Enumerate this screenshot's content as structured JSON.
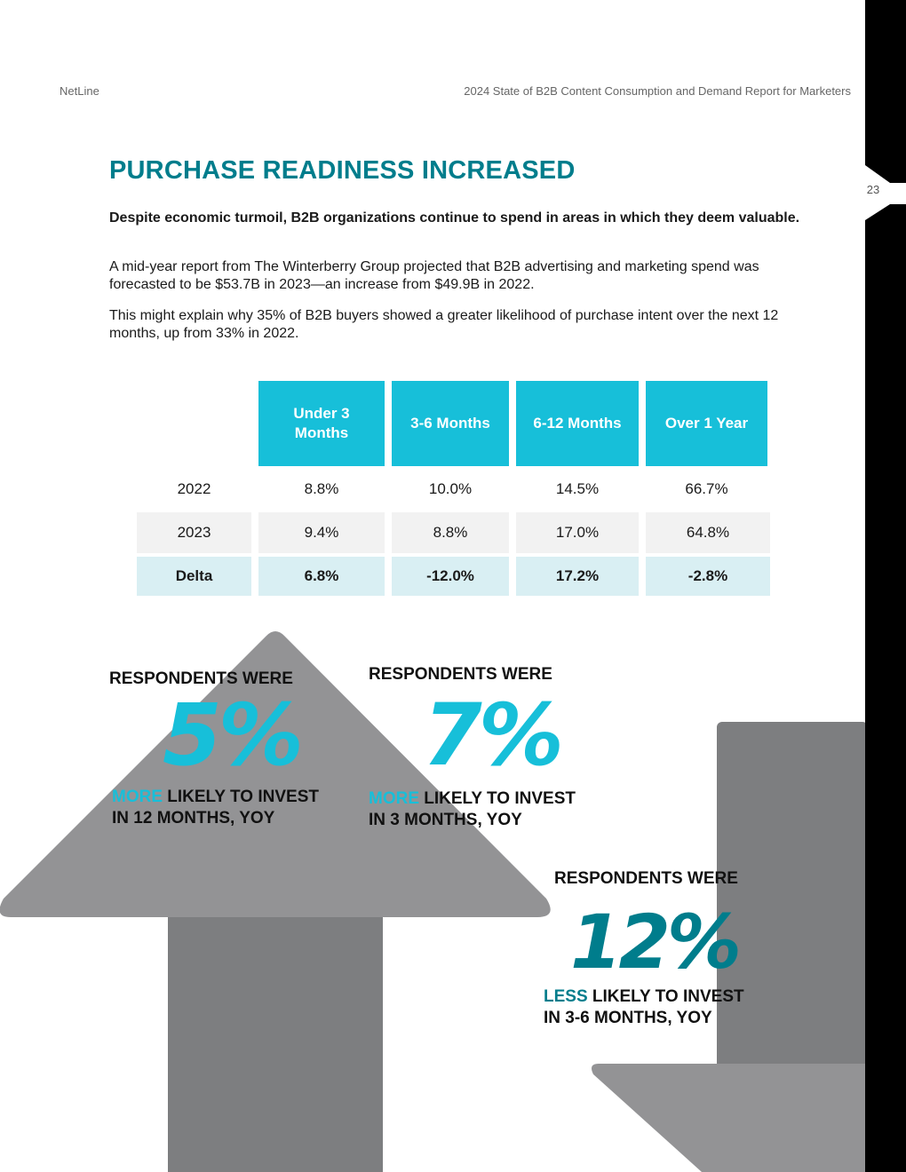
{
  "header": {
    "brand": "NetLine",
    "report_title": "2024 State of B2B Content Consumption and Demand Report for Marketers",
    "page_number": "23"
  },
  "section": {
    "title": "PURCHASE READINESS INCREASED",
    "lead": "Despite economic turmoil, B2B organizations continue to spend in areas in which they deem valuable.",
    "paragraph1": "A mid-year report from The Winterberry Group projected that B2B advertising and marketing spend was forecasted to be $53.7B in 2023—an increase from $49.9B in 2022.",
    "paragraph2": "This might explain why 35% of B2B buyers showed a greater likelihood of purchase intent over the next 12 months, up from 33% in 2022."
  },
  "table": {
    "headers": [
      "Under 3 Months",
      "3-6 Months",
      "6-12 Months",
      "Over 1 Year"
    ],
    "rows": [
      {
        "label": "2022",
        "values": [
          "8.8%",
          "10.0%",
          "14.5%",
          "66.7%"
        ]
      },
      {
        "label": "2023",
        "values": [
          "9.4%",
          "8.8%",
          "17.0%",
          "64.8%"
        ]
      },
      {
        "label": "Delta",
        "values": [
          "6.8%",
          "-12.0%",
          "17.2%",
          "-2.8%"
        ]
      }
    ]
  },
  "stats": [
    {
      "intro": "RESPONDENTS WERE",
      "value": "5%",
      "highlight": "MORE",
      "line1_rest": " LIKELY TO INVEST",
      "line2": "IN 12 MONTHS, YOY"
    },
    {
      "intro": "RESPONDENTS WERE",
      "value": "7%",
      "highlight": "MORE",
      "line1_rest": " LIKELY TO INVEST",
      "line2": "IN 3 MONTHS, YOY"
    },
    {
      "intro": "RESPONDENTS WERE",
      "value": "12%",
      "highlight": "LESS",
      "line1_rest": " LIKELY TO INVEST",
      "line2": "IN 3-6 MONTHS, YOY"
    }
  ],
  "colors": {
    "accent_cyan": "#17bfd9",
    "accent_teal": "#007d8c",
    "arrow_dark": "#7d7e80",
    "arrow_light": "#939395"
  },
  "icons": {
    "up_arrow": "up-arrow-graphic",
    "down_arrow": "down-arrow-graphic"
  }
}
